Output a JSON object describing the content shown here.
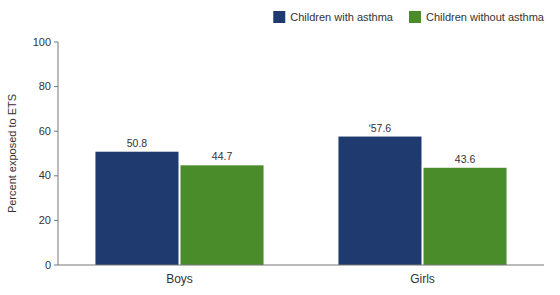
{
  "chart_data": {
    "type": "bar",
    "categories": [
      "Boys",
      "Girls"
    ],
    "series": [
      {
        "name": "Children with asthma",
        "color": "#1f3a6e",
        "values": [
          50.8,
          57.6
        ],
        "value_labels": [
          "50.8",
          "ʹ57.6"
        ]
      },
      {
        "name": "Children without asthma",
        "color": "#4a8c2a",
        "values": [
          44.7,
          43.6
        ]
      }
    ],
    "ylabel": "Percent exposed to ETS",
    "ylim": [
      0,
      100
    ],
    "yticks": [
      0,
      20,
      40,
      60,
      80,
      100
    ],
    "data_labels": true,
    "legend": "upper right",
    "grid": false
  }
}
